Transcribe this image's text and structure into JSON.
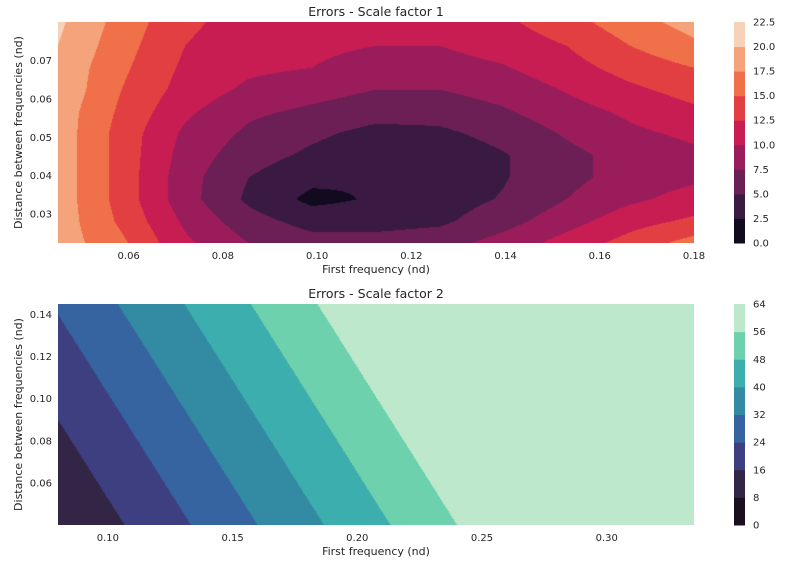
{
  "chart_data": [
    {
      "type": "contour",
      "title": "Errors - Scale factor 1",
      "xlabel": "First frequency (nd)",
      "ylabel": "Distance between frequencies (nd)",
      "xlim": [
        0.045,
        0.18
      ],
      "ylim": [
        0.0225,
        0.08
      ],
      "xticks": [
        "0.06",
        "0.08",
        "0.10",
        "0.12",
        "0.14",
        "0.16",
        "0.18"
      ],
      "xtick_values": [
        0.06,
        0.08,
        0.1,
        0.12,
        0.14,
        0.16,
        0.18
      ],
      "yticks": [
        "0.03",
        "0.04",
        "0.05",
        "0.06",
        "0.07"
      ],
      "ytick_values": [
        0.03,
        0.04,
        0.05,
        0.06,
        0.07
      ],
      "x": [
        0.045,
        0.0585,
        0.072,
        0.0855,
        0.099,
        0.1125,
        0.126,
        0.1395,
        0.153,
        0.1665,
        0.18
      ],
      "y": [
        0.0225,
        0.0282,
        0.0339,
        0.0396,
        0.0453,
        0.051,
        0.0567,
        0.0624,
        0.0681,
        0.0738,
        0.08
      ],
      "z": [
        [
          19,
          15.5,
          10.5,
          7.5,
          6,
          6,
          6.5,
          8.5,
          11,
          13.5,
          16
        ],
        [
          19,
          14.5,
          9.5,
          6,
          4,
          4,
          4.5,
          6.5,
          9,
          11.5,
          13
        ],
        [
          19,
          14,
          8.5,
          4.5,
          1.8,
          2.8,
          3.8,
          5.2,
          7.5,
          9.5,
          11
        ],
        [
          19,
          14,
          8.5,
          5,
          3.2,
          2.6,
          3.2,
          4.8,
          6.8,
          8.5,
          9.5
        ],
        [
          19,
          14,
          9,
          6,
          4.5,
          3.2,
          3.4,
          4.8,
          6.8,
          8.5,
          9.5
        ],
        [
          19,
          14,
          9.5,
          7,
          5.5,
          4.2,
          4.5,
          5.8,
          7.8,
          9.5,
          10.5
        ],
        [
          19,
          14.5,
          10.5,
          8,
          7,
          6,
          6,
          7.2,
          9,
          10.5,
          12
        ],
        [
          19.5,
          15,
          11.5,
          9.5,
          8.5,
          7.5,
          7.5,
          8.5,
          10.2,
          12,
          13.5
        ],
        [
          19.5,
          15.5,
          12,
          10.5,
          10,
          9,
          9,
          9.8,
          11.5,
          13.5,
          15
        ],
        [
          20,
          16,
          12.5,
          11,
          10.5,
          10,
          10,
          11,
          12.5,
          15,
          17
        ],
        [
          20.5,
          16.5,
          13,
          11.5,
          11,
          10.5,
          11,
          12,
          14,
          16.5,
          18.5
        ]
      ],
      "levels": [
        0,
        2.5,
        5,
        7.5,
        10,
        12.5,
        15,
        17.5,
        20,
        22.5
      ],
      "colorbar_ticks": [
        "0.0",
        "2.5",
        "5.0",
        "7.5",
        "10.0",
        "12.5",
        "15.0",
        "17.5",
        "20.0",
        "22.5"
      ],
      "colors": [
        "#120a1f",
        "#3a1a42",
        "#6c1f55",
        "#9a1c5b",
        "#c71d52",
        "#e23f43",
        "#f0704a",
        "#f5a37a",
        "#f6d2b8"
      ],
      "grid": false,
      "colorbar": "right"
    },
    {
      "type": "contour",
      "title": "Errors - Scale factor 2",
      "xlabel": "First frequency (nd)",
      "ylabel": "Distance between frequencies (nd)",
      "xlim": [
        0.08,
        0.335
      ],
      "ylim": [
        0.04,
        0.145
      ],
      "xticks": [
        "0.10",
        "0.15",
        "0.20",
        "0.25",
        "0.30"
      ],
      "xtick_values": [
        0.1,
        0.15,
        0.2,
        0.25,
        0.3
      ],
      "yticks": [
        "0.06",
        "0.08",
        "0.10",
        "0.12",
        "0.14"
      ],
      "ytick_values": [
        0.06,
        0.08,
        0.1,
        0.12,
        0.14
      ],
      "a": 300,
      "b": 160,
      "c": 8,
      "levels": [
        0,
        8,
        16,
        24,
        32,
        40,
        48,
        56,
        64
      ],
      "colorbar_ticks": [
        "0",
        "8",
        "16",
        "24",
        "32",
        "40",
        "48",
        "56",
        "64"
      ],
      "colors": [
        "#1b0f1f",
        "#322545",
        "#3d3f81",
        "#3564a0",
        "#338aa3",
        "#3daeae",
        "#6dd1ad",
        "#bde8cc"
      ],
      "grid": false,
      "colorbar": "right"
    }
  ]
}
